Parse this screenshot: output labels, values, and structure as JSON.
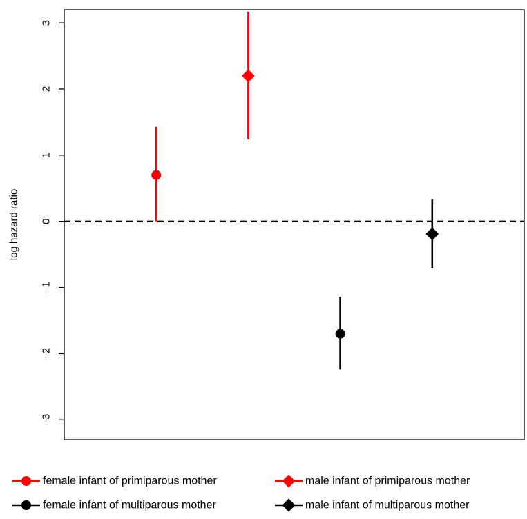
{
  "chart_data": {
    "type": "scatter",
    "title": "",
    "xlabel": "",
    "ylabel": "log hazard ratio",
    "ylim": [
      -3.3,
      3.2
    ],
    "yticks": [
      -3,
      -2,
      -1,
      0,
      1,
      2,
      3
    ],
    "ytick_labels": [
      "−3",
      "−2",
      "−1",
      "0",
      "1",
      "2",
      "3"
    ],
    "xlim": [
      0.5,
      5.5
    ],
    "reference_line": {
      "y": 0,
      "style": "dashed",
      "color": "#000000"
    },
    "legend_position": "bottom",
    "series": [
      {
        "name": "female infant of primiparous mother",
        "x": 1.5,
        "y": 0.7,
        "ci_low": 0.0,
        "ci_high": 1.43,
        "color": "#ff0000",
        "marker": "circle"
      },
      {
        "name": "male infant of primiparous mother",
        "x": 2.5,
        "y": 2.2,
        "ci_low": 1.24,
        "ci_high": 3.17,
        "color": "#ff0000",
        "marker": "diamond"
      },
      {
        "name": "female infant of multiparous mother",
        "x": 3.5,
        "y": -1.7,
        "ci_low": -2.24,
        "ci_high": -1.14,
        "color": "#000000",
        "marker": "circle"
      },
      {
        "name": "male infant of multiparous mother",
        "x": 4.5,
        "y": -0.19,
        "ci_low": -0.71,
        "ci_high": 0.33,
        "color": "#000000",
        "marker": "diamond"
      }
    ]
  }
}
